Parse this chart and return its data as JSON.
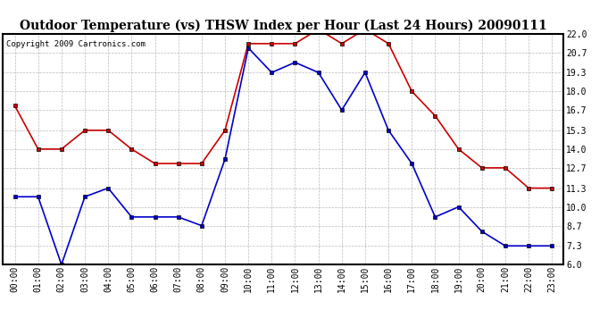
{
  "title": "Outdoor Temperature (vs) THSW Index per Hour (Last 24 Hours) 20090111",
  "copyright": "Copyright 2009 Cartronics.com",
  "hours": [
    "00:00",
    "01:00",
    "02:00",
    "03:00",
    "04:00",
    "05:00",
    "06:00",
    "07:00",
    "08:00",
    "09:00",
    "10:00",
    "11:00",
    "12:00",
    "13:00",
    "14:00",
    "15:00",
    "16:00",
    "17:00",
    "18:00",
    "19:00",
    "20:00",
    "21:00",
    "22:00",
    "23:00"
  ],
  "red_data": [
    17.0,
    14.0,
    14.0,
    15.3,
    15.3,
    14.0,
    13.0,
    13.0,
    13.0,
    15.3,
    21.3,
    21.3,
    21.3,
    22.3,
    21.3,
    22.3,
    21.3,
    18.0,
    16.3,
    14.0,
    12.7,
    12.7,
    11.3,
    11.3
  ],
  "blue_data": [
    10.7,
    10.7,
    6.0,
    10.7,
    11.3,
    9.3,
    9.3,
    9.3,
    8.7,
    13.3,
    21.0,
    19.3,
    20.0,
    19.3,
    16.7,
    19.3,
    15.3,
    13.0,
    9.3,
    10.0,
    8.3,
    7.3,
    7.3,
    7.3
  ],
  "ylim": [
    6.0,
    22.0
  ],
  "yticks": [
    6.0,
    7.3,
    8.7,
    10.0,
    11.3,
    12.7,
    14.0,
    15.3,
    16.7,
    18.0,
    19.3,
    20.7,
    22.0
  ],
  "red_color": "#cc0000",
  "blue_color": "#0000cc",
  "bg_color": "#ffffff",
  "plot_bg_color": "#ffffff",
  "grid_color": "#aaaaaa",
  "title_fontsize": 10,
  "copyright_fontsize": 6.5,
  "tick_fontsize": 7,
  "ytick_fontsize": 7
}
